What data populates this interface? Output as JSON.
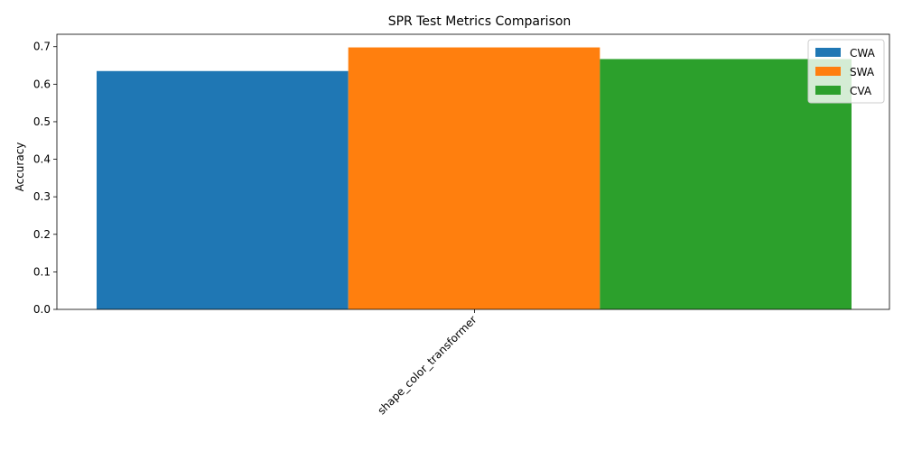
{
  "chart_data": {
    "type": "bar",
    "title": "SPR Test Metrics Comparison",
    "xlabel": "",
    "ylabel": "Accuracy",
    "categories": [
      "shape_color_transformer"
    ],
    "series": [
      {
        "name": "CWA",
        "values": [
          0.635
        ],
        "color": "#1f77b4"
      },
      {
        "name": "SWA",
        "values": [
          0.698
        ],
        "color": "#ff7f0e"
      },
      {
        "name": "CVA",
        "values": [
          0.667
        ],
        "color": "#2ca02c"
      }
    ],
    "ylim": [
      0,
      0.733
    ],
    "yticks": [
      0.0,
      0.1,
      0.2,
      0.3,
      0.4,
      0.5,
      0.6,
      0.7
    ],
    "ytick_labels": [
      "0.0",
      "0.1",
      "0.2",
      "0.3",
      "0.4",
      "0.5",
      "0.6",
      "0.7"
    ],
    "grid": false,
    "legend_position": "top-right"
  }
}
